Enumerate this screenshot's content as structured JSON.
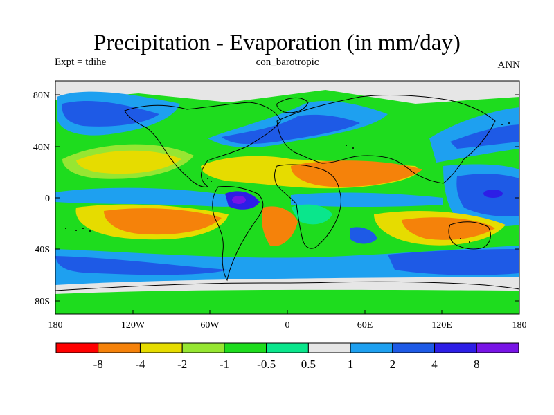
{
  "title": "Precipitation - Evaporation (in mm/day)",
  "subtitle_left": "Expt = tdihe",
  "subtitle_center": "con_barotropic",
  "subtitle_right": "ANN",
  "map": {
    "lat_ticks": [
      "80N",
      "40N",
      "0",
      "40S",
      "80S"
    ],
    "lon_ticks": [
      "180",
      "120W",
      "60W",
      "0",
      "60E",
      "120E",
      "180"
    ]
  },
  "colorbar": {
    "colors": [
      "#ff0000",
      "#f5820a",
      "#e6dc00",
      "#96e632",
      "#1edc1e",
      "#0ae68c",
      "#e6e6e6",
      "#1ea0f0",
      "#1e5ae6",
      "#2d1ee6",
      "#7814e6"
    ],
    "labels": [
      "-8",
      "-4",
      "-2",
      "-1",
      "-0.5",
      "0.5",
      "1",
      "2",
      "4",
      "8"
    ]
  }
}
